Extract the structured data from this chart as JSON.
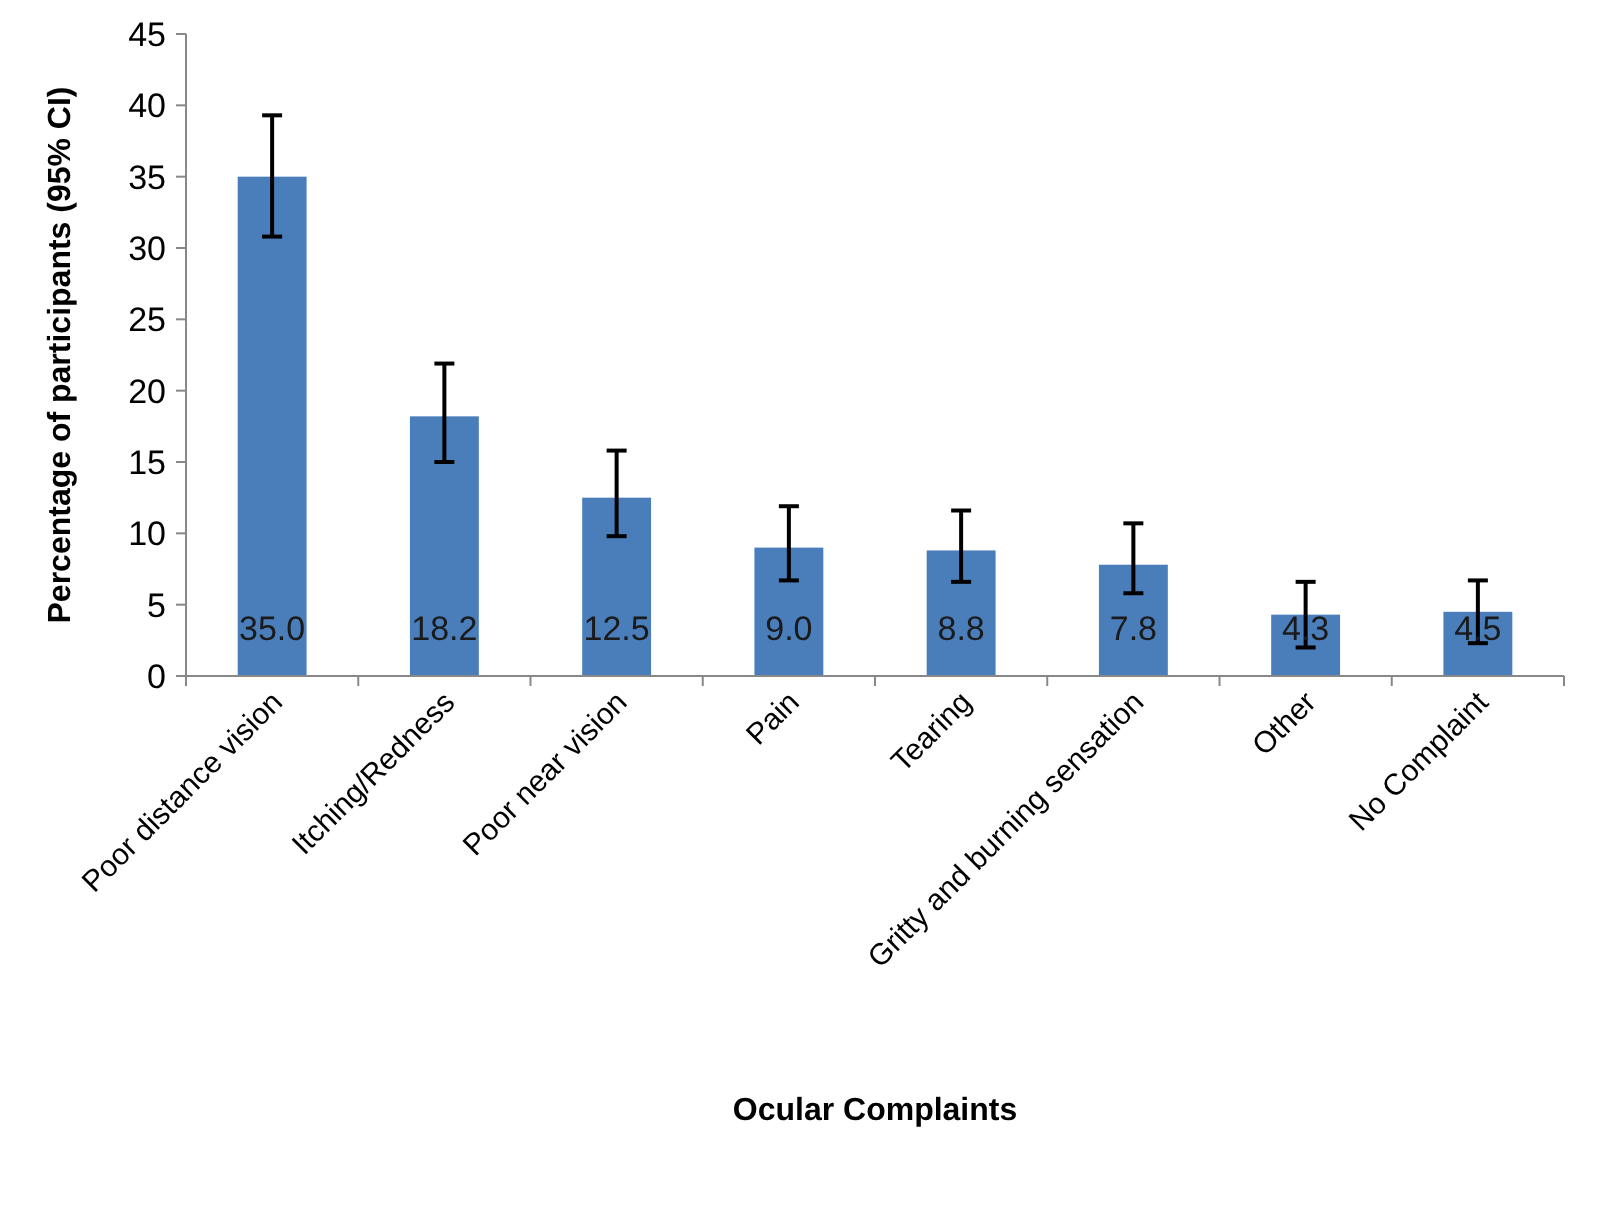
{
  "chart_data": {
    "type": "bar",
    "xlabel": "Ocular Complaints",
    "ylabel": "Percentage of participants (95% CI)",
    "categories": [
      "Poor distance vision",
      "Itching/Redness",
      "Poor near vision",
      "Pain",
      "Tearing",
      "Gritty and burning sensation",
      "Other",
      "No Complaint"
    ],
    "values": [
      35.0,
      18.2,
      12.5,
      9.0,
      8.8,
      7.8,
      4.3,
      4.5
    ],
    "errors": [
      [
        30.8,
        39.3
      ],
      [
        15.0,
        21.9
      ],
      [
        9.8,
        15.8
      ],
      [
        6.7,
        11.9
      ],
      [
        6.6,
        11.6
      ],
      [
        5.8,
        10.7
      ],
      [
        2.0,
        6.6
      ],
      [
        2.3,
        6.7
      ]
    ],
    "value_labels": [
      "35.0",
      "18.2",
      "12.5",
      "9.0",
      "8.8",
      "7.8",
      "4.3",
      "4.5"
    ],
    "color": "#4a7ebb",
    "ylim": [
      0,
      45
    ],
    "yticks": [
      0,
      5,
      10,
      15,
      20,
      25,
      30,
      35,
      40,
      45
    ],
    "grid": false
  }
}
